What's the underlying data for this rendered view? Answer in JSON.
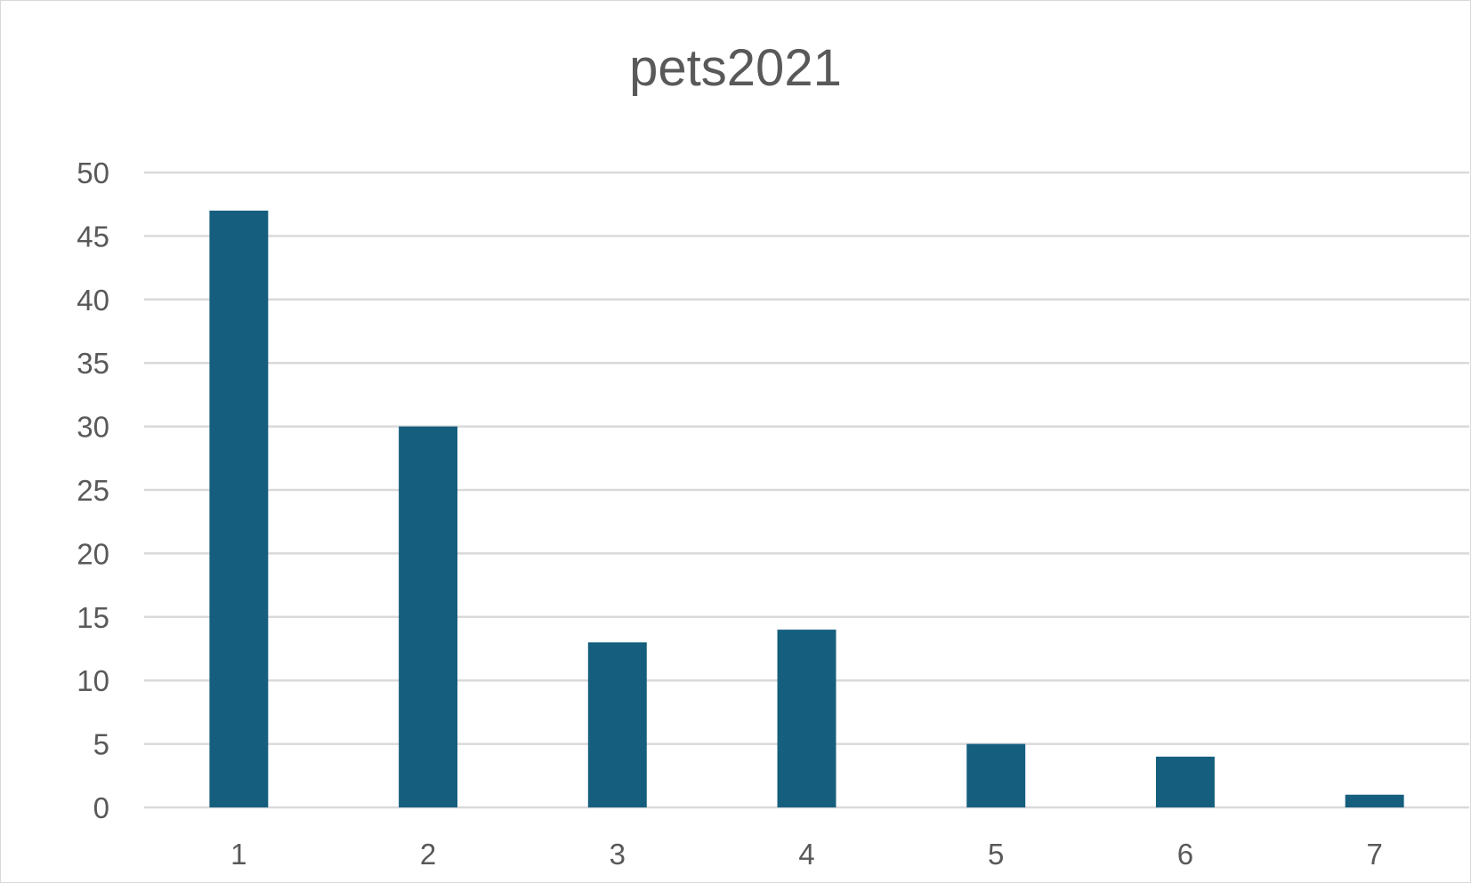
{
  "chart_data": {
    "type": "bar",
    "title": "pets2021",
    "categories": [
      "1",
      "2",
      "3",
      "4",
      "5",
      "6",
      "7"
    ],
    "series": [
      {
        "values": [
          47,
          30,
          13,
          14,
          5,
          4,
          1
        ]
      }
    ],
    "xlabel": "",
    "ylabel": "",
    "ylim": [
      0,
      50
    ],
    "yticks": [
      "0",
      "5",
      "10",
      "15",
      "20",
      "25",
      "30",
      "35",
      "40",
      "45",
      "50"
    ],
    "grid": true,
    "legend": "none",
    "colors": {
      "bar": "#155e7e",
      "grid": "#d9d9d9",
      "text": "#595959"
    }
  }
}
